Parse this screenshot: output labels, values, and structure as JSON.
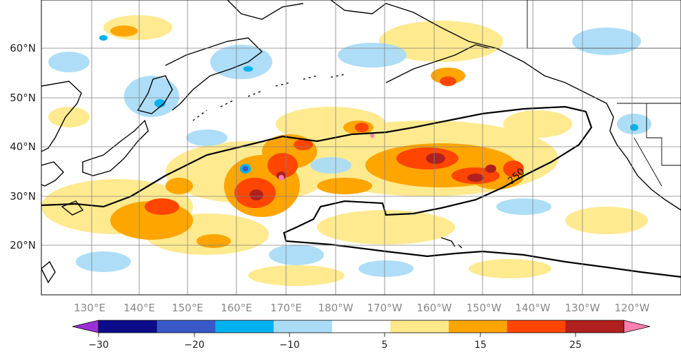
{
  "map": {
    "lat_labels": [
      "60°N",
      "50°N",
      "40°N",
      "30°N",
      "20°N"
    ],
    "lon_labels": [
      "130°E",
      "140°E",
      "150°E",
      "160°E",
      "170°E",
      "180°W",
      "170°W",
      "160°W",
      "150°W",
      "140°W",
      "130°W",
      "120°W"
    ],
    "contour_label": "250",
    "gridlines": true
  },
  "colorbar": {
    "tick_labels": [
      "−30",
      "−20",
      "−10",
      "5",
      "15",
      "25"
    ],
    "colors": [
      "#9b30d9",
      "#0c0c8a",
      "#3a59c8",
      "#00b2ef",
      "#aadcf7",
      "#ffffff",
      "#ffe98a",
      "#ffa500",
      "#ff4500",
      "#b0201e",
      "#ff7fb0"
    ],
    "extend": "both"
  }
}
